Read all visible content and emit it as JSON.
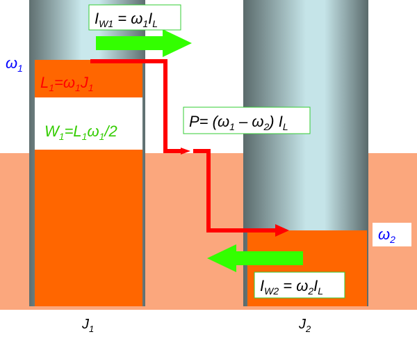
{
  "colors": {
    "bath": "#fba77d",
    "fluid": "#ff6600",
    "tube_dark": "#5f6f70",
    "tube_light": "#c9e8ec",
    "flow_arrow": "#ff0000",
    "flux_arrow": "#33ff00",
    "label_green": "#33cc00",
    "label_red": "#ff0000",
    "label_blue": "#0000ff",
    "box_border": "#33cc33"
  },
  "labels": {
    "omega1": "ω",
    "omega1_sub": "1",
    "omega2": "ω",
    "omega2_sub": "2",
    "j1": "J",
    "j1_sub": "1",
    "j2": "J",
    "j2_sub": "2"
  },
  "eq": {
    "iw1": {
      "pre": "I",
      "pre_sub": "W1",
      "mid": " = ω",
      "mid_sub": "1",
      "post": "I",
      "post_sub": "L"
    },
    "iw2": {
      "pre": "I",
      "pre_sub": "W2",
      "mid": " = ω",
      "mid_sub": "2",
      "post": "I",
      "post_sub": "L"
    },
    "l1": {
      "a": "L",
      "a_sub": "1",
      "b": "=ω",
      "b_sub": "1",
      "c": "J",
      "c_sub": "1"
    },
    "w1": {
      "a": "W",
      "a_sub": "1",
      "b": "=L",
      "b_sub": "1",
      "c": "ω",
      "c_sub": "1",
      "d": "/2"
    },
    "p": {
      "a": "P= (ω",
      "a_sub": "1",
      "b": " – ω",
      "b_sub": "2",
      "c": ") I",
      "c_sub": "L"
    }
  },
  "icons": [
    "flow-arrow",
    "flux-arrow-right",
    "flux-arrow-left"
  ]
}
